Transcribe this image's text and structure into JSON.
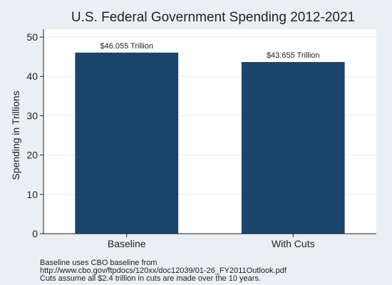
{
  "colors": {
    "background": "#e9eff3",
    "plot_area": "#ffffff",
    "bar": "#1b446b",
    "grid": "#e6ecf0",
    "text": "#222222"
  },
  "notes": [
    "Baseline uses CBO baseline from",
    "http://www.cbo.gov/ftpdocs/120xx/doc12039/01-26_FY2011Outlook.pdf",
    "Cuts assume all $2.4 trillion in cuts are made over the 10 years."
  ],
  "chart_data": {
    "type": "bar",
    "title": "U.S. Federal Government Spending 2012-2021",
    "xlabel": "",
    "ylabel": "Spending in Trillions",
    "categories": [
      "Baseline",
      "With Cuts"
    ],
    "values": [
      46.055,
      43.655
    ],
    "data_labels": [
      "$46.055 Trillion",
      "$43.655 Trillion"
    ],
    "ylim": [
      0,
      52
    ],
    "yticks": [
      0,
      10,
      20,
      30,
      40,
      50
    ],
    "grid": true,
    "legend": "none"
  }
}
